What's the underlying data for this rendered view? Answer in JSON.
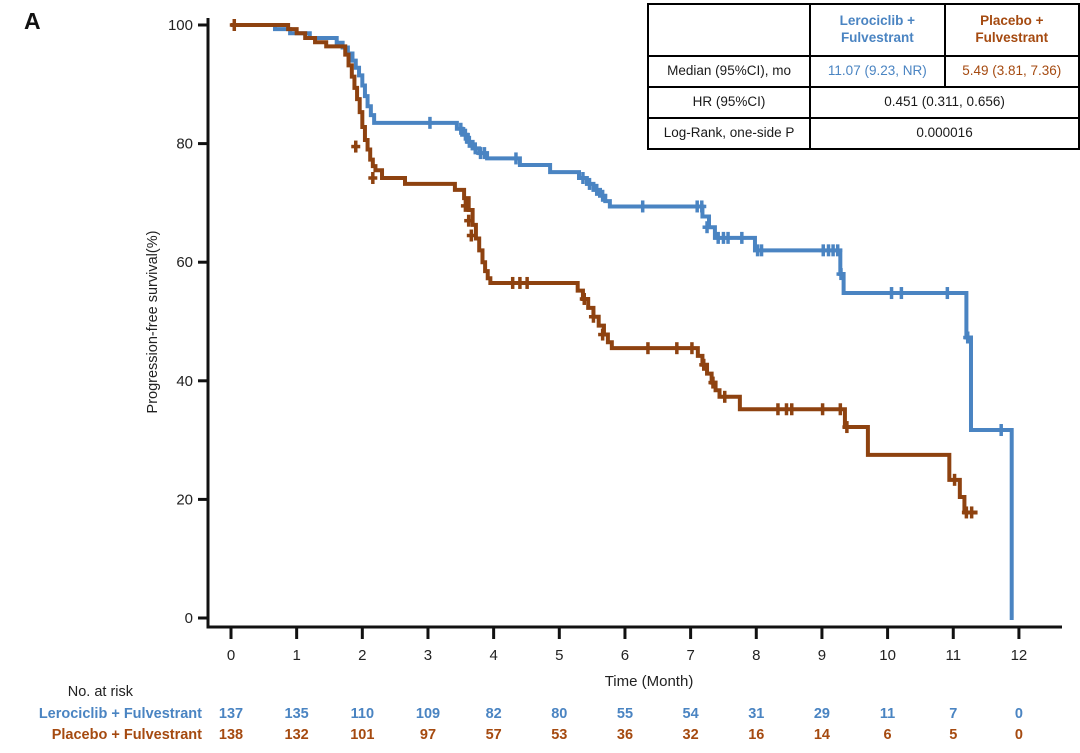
{
  "panel_label": "A",
  "colors": {
    "lerociclib": "#4A84C2",
    "placebo": "#8E4210",
    "placebo_text": "#A54A10",
    "axis": "#111111",
    "tick_text": "#222222"
  },
  "stats_table": {
    "columns": [
      "Lerociclib +\nFulvestrant",
      "Placebo +\nFulvestrant"
    ],
    "rows": [
      {
        "label": "Median (95%CI), mo",
        "values": [
          "11.07 (9.23, NR)",
          "5.49 (3.81, 7.36)"
        ]
      },
      {
        "label": "HR (95%CI)",
        "values": [
          "0.451 (0.311, 0.656)"
        ]
      },
      {
        "label": "Log-Rank, one-side P",
        "values": [
          "0.000016"
        ]
      }
    ]
  },
  "risk_table": {
    "heading": "No. at risk",
    "times": [
      0,
      1,
      2,
      3,
      4,
      5,
      6,
      7,
      8,
      9,
      10,
      11,
      12
    ],
    "rows": [
      {
        "label": "Lerociclib + Fulvestrant",
        "series": "lerociclib",
        "counts": [
          137,
          135,
          110,
          109,
          82,
          80,
          55,
          54,
          31,
          29,
          11,
          7,
          0
        ]
      },
      {
        "label": "Placebo + Fulvestrant",
        "series": "placebo",
        "counts": [
          138,
          132,
          101,
          97,
          57,
          53,
          36,
          32,
          16,
          14,
          6,
          5,
          0
        ]
      }
    ]
  },
  "chart_data": {
    "type": "line",
    "subtype": "kaplan-meier-step",
    "title": "",
    "xlabel": "Time (Month)",
    "ylabel": "Progression-free survival(%)",
    "xlim": [
      0,
      12.6
    ],
    "ylim": [
      0,
      100
    ],
    "x_ticks": [
      0,
      1,
      2,
      3,
      4,
      5,
      6,
      7,
      8,
      9,
      10,
      11,
      12
    ],
    "y_ticks": [
      0,
      20,
      40,
      60,
      80,
      100
    ],
    "grid": false,
    "legend_position": "none",
    "series": [
      {
        "name": "Lerociclib + Fulvestrant",
        "color_key": "lerociclib",
        "end_month": 11.92,
        "steps": [
          [
            0,
            100
          ],
          [
            0.67,
            99.3
          ],
          [
            0.9,
            98.6
          ],
          [
            1.2,
            97.8
          ],
          [
            1.61,
            97
          ],
          [
            1.7,
            96.2
          ],
          [
            1.78,
            95.2
          ],
          [
            1.85,
            94
          ],
          [
            1.9,
            92.8
          ],
          [
            1.95,
            91.5
          ],
          [
            2.0,
            89.8
          ],
          [
            2.04,
            88
          ],
          [
            2.08,
            86.3
          ],
          [
            2.13,
            84.8
          ],
          [
            2.18,
            83.5
          ],
          [
            3.44,
            82.5
          ],
          [
            3.52,
            81.5
          ],
          [
            3.6,
            80.3
          ],
          [
            3.68,
            79.2
          ],
          [
            3.78,
            78.4
          ],
          [
            3.9,
            77.5
          ],
          [
            4.4,
            76.4
          ],
          [
            4.86,
            75.2
          ],
          [
            5.3,
            74.2
          ],
          [
            5.42,
            73.2
          ],
          [
            5.52,
            72.2
          ],
          [
            5.62,
            71.2
          ],
          [
            5.7,
            70.3
          ],
          [
            5.77,
            69.4
          ],
          [
            7.18,
            67.7
          ],
          [
            7.28,
            65.9
          ],
          [
            7.37,
            64.1
          ],
          [
            7.98,
            62
          ],
          [
            9.28,
            58
          ],
          [
            9.33,
            54.8
          ],
          [
            11.2,
            47.3
          ],
          [
            11.27,
            31.7
          ],
          [
            11.89,
            0
          ]
        ],
        "censors": [
          [
            3.03,
            83.5
          ],
          [
            3.5,
            82.5
          ],
          [
            3.57,
            81.5
          ],
          [
            3.63,
            80.3
          ],
          [
            3.72,
            79.2
          ],
          [
            3.8,
            78.4
          ],
          [
            3.86,
            78.4
          ],
          [
            4.34,
            77.5
          ],
          [
            5.36,
            74.2
          ],
          [
            5.46,
            73.2
          ],
          [
            5.57,
            72.2
          ],
          [
            5.66,
            71.2
          ],
          [
            6.27,
            69.4
          ],
          [
            7.1,
            69.4
          ],
          [
            7.17,
            69.4
          ],
          [
            7.25,
            65.9
          ],
          [
            7.42,
            64.1
          ],
          [
            7.5,
            64.1
          ],
          [
            7.57,
            64.1
          ],
          [
            7.78,
            64.1
          ],
          [
            8.02,
            62
          ],
          [
            8.08,
            62
          ],
          [
            9.02,
            62
          ],
          [
            9.1,
            62
          ],
          [
            9.17,
            62
          ],
          [
            9.24,
            62
          ],
          [
            9.29,
            58
          ],
          [
            10.06,
            54.8
          ],
          [
            10.21,
            54.8
          ],
          [
            10.91,
            54.8
          ],
          [
            11.22,
            47.3
          ],
          [
            11.73,
            31.7
          ]
        ]
      },
      {
        "name": "Placebo + Fulvestrant",
        "color_key": "placebo",
        "end_month": 11.37,
        "steps": [
          [
            0,
            100
          ],
          [
            0.87,
            99.3
          ],
          [
            1.0,
            98.6
          ],
          [
            1.13,
            97.8
          ],
          [
            1.28,
            97.1
          ],
          [
            1.45,
            96.4
          ],
          [
            1.74,
            95
          ],
          [
            1.79,
            93.2
          ],
          [
            1.84,
            91.3
          ],
          [
            1.88,
            89.4
          ],
          [
            1.92,
            87.5
          ],
          [
            1.96,
            85.3
          ],
          [
            2.0,
            82.8
          ],
          [
            2.04,
            80.6
          ],
          [
            2.08,
            79
          ],
          [
            2.12,
            77.3
          ],
          [
            2.16,
            76.2
          ],
          [
            2.2,
            75.5
          ],
          [
            2.3,
            74.2
          ],
          [
            2.65,
            73.2
          ],
          [
            3.41,
            72.2
          ],
          [
            3.55,
            70.8
          ],
          [
            3.62,
            68.8
          ],
          [
            3.68,
            66.3
          ],
          [
            3.73,
            64
          ],
          [
            3.78,
            62
          ],
          [
            3.83,
            60
          ],
          [
            3.87,
            58.5
          ],
          [
            3.91,
            57.3
          ],
          [
            3.95,
            56.5
          ],
          [
            5.28,
            55.2
          ],
          [
            5.36,
            53.8
          ],
          [
            5.44,
            52.3
          ],
          [
            5.52,
            50.8
          ],
          [
            5.6,
            49.3
          ],
          [
            5.68,
            47.8
          ],
          [
            5.74,
            46.5
          ],
          [
            5.8,
            45.5
          ],
          [
            7.11,
            44.2
          ],
          [
            7.18,
            42.7
          ],
          [
            7.25,
            41.2
          ],
          [
            7.32,
            39.7
          ],
          [
            7.38,
            38.4
          ],
          [
            7.44,
            37.3
          ],
          [
            7.75,
            35.2
          ],
          [
            9.35,
            32.2
          ],
          [
            9.7,
            27.5
          ],
          [
            10.94,
            23.3
          ],
          [
            11.1,
            20.4
          ],
          [
            11.17,
            17.8
          ]
        ],
        "censors": [
          [
            0.05,
            100
          ],
          [
            1.9,
            79.5
          ],
          [
            2.16,
            74.2
          ],
          [
            3.57,
            69.5
          ],
          [
            3.62,
            67
          ],
          [
            3.66,
            64.5
          ],
          [
            4.29,
            56.5
          ],
          [
            4.4,
            56.5
          ],
          [
            4.51,
            56.5
          ],
          [
            5.38,
            53.8
          ],
          [
            5.52,
            50.8
          ],
          [
            5.66,
            47.8
          ],
          [
            6.35,
            45.5
          ],
          [
            6.79,
            45.5
          ],
          [
            7.02,
            45.5
          ],
          [
            7.2,
            42.7
          ],
          [
            7.34,
            39.7
          ],
          [
            7.52,
            37.3
          ],
          [
            8.33,
            35.2
          ],
          [
            8.46,
            35.2
          ],
          [
            8.54,
            35.2
          ],
          [
            9.01,
            35.2
          ],
          [
            9.28,
            35.2
          ],
          [
            9.38,
            32.2
          ],
          [
            11.02,
            23.3
          ],
          [
            11.2,
            17.8
          ],
          [
            11.28,
            17.8
          ]
        ]
      }
    ]
  }
}
